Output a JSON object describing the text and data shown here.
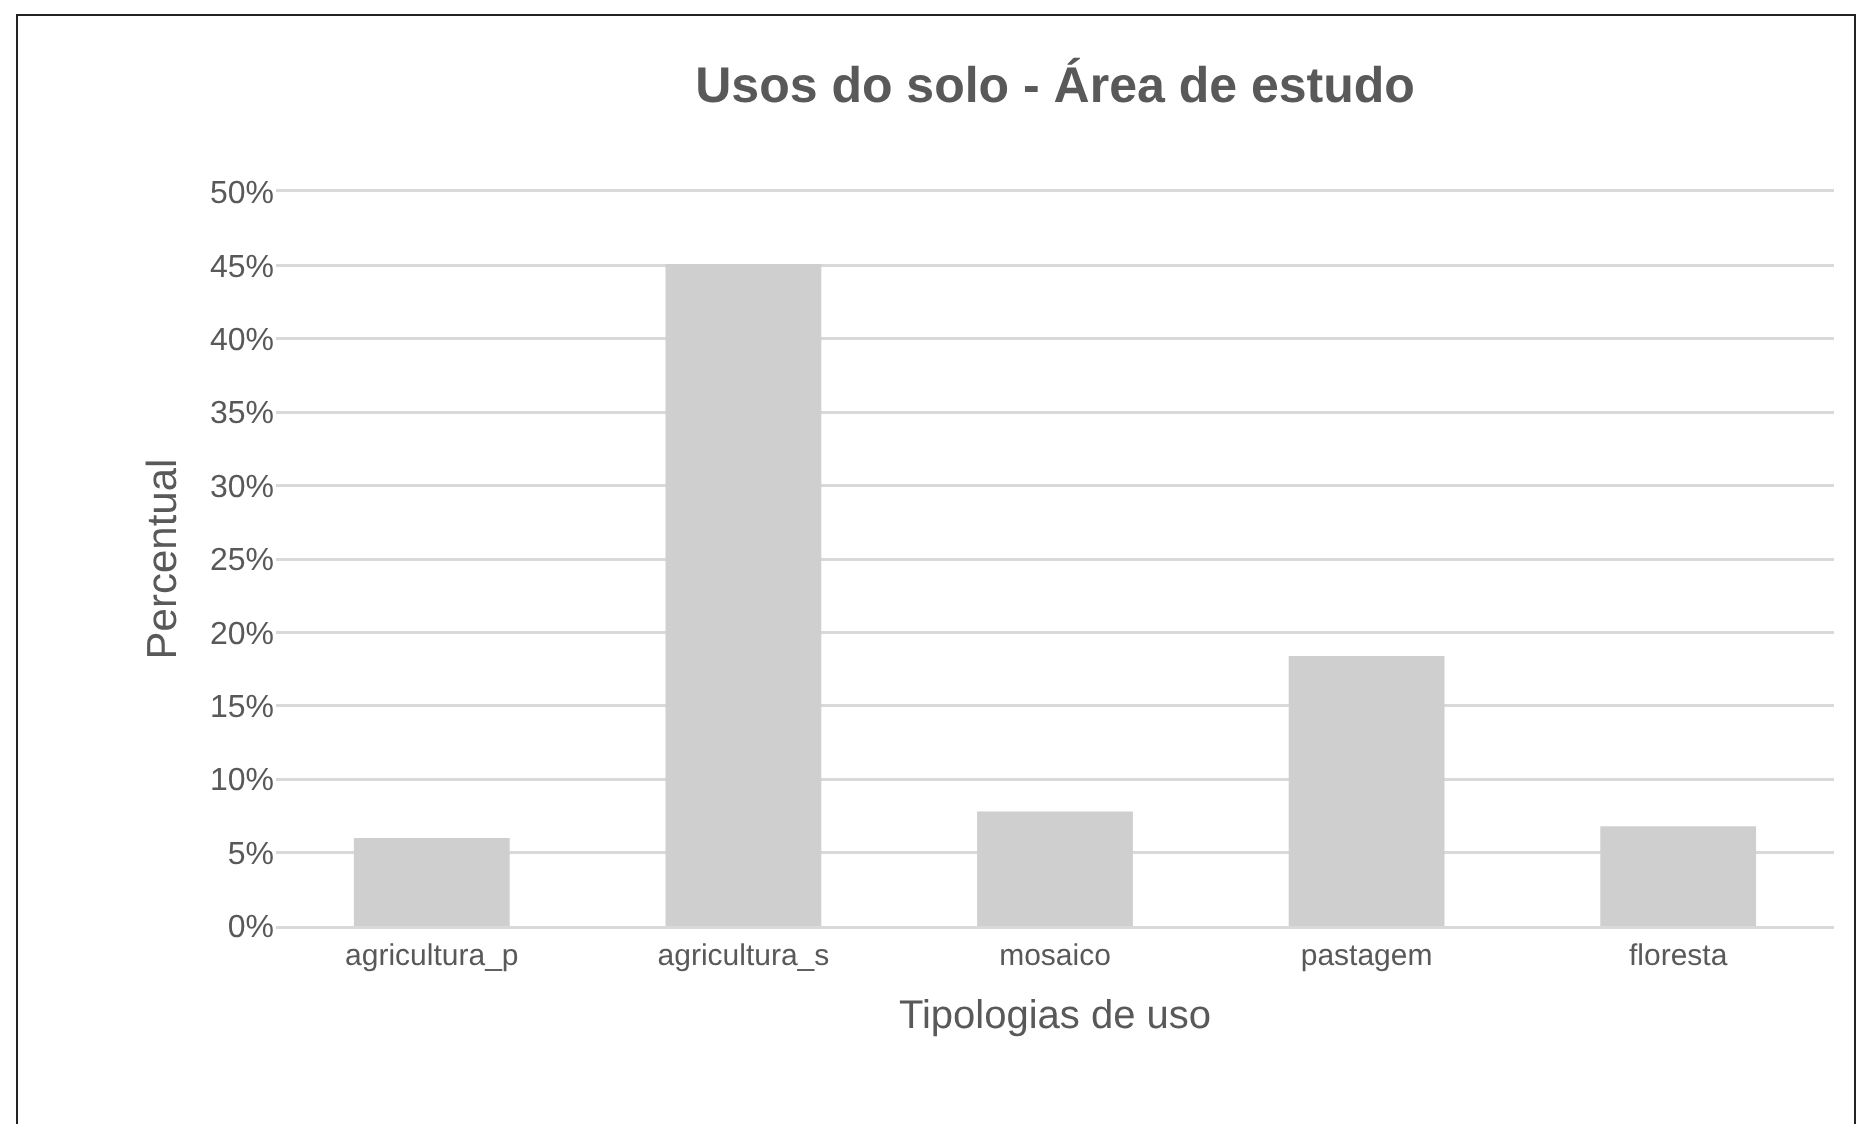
{
  "chart_data": {
    "type": "bar",
    "title": "Usos do solo - Área de estudo",
    "xlabel": "Tipologias de uso",
    "ylabel": "Percentual",
    "categories": [
      "agricultura_p",
      "agricultura_s",
      "mosaico",
      "pastagem",
      "floresta"
    ],
    "values": [
      6,
      45.1,
      7.8,
      18.4,
      6.8
    ],
    "color": "#d0cfd0",
    "ylim": [
      0,
      50
    ],
    "yticks": [
      {
        "value": 0,
        "label": "0%"
      },
      {
        "value": 5,
        "label": "5%"
      },
      {
        "value": 10,
        "label": "10%"
      },
      {
        "value": 15,
        "label": "15%"
      },
      {
        "value": 20,
        "label": "20%"
      },
      {
        "value": 25,
        "label": "25%"
      },
      {
        "value": 30,
        "label": "30%"
      },
      {
        "value": 35,
        "label": "35%"
      },
      {
        "value": 40,
        "label": "40%"
      },
      {
        "value": 45,
        "label": "45%"
      },
      {
        "value": 50,
        "label": "50%"
      }
    ],
    "grid": "y"
  }
}
